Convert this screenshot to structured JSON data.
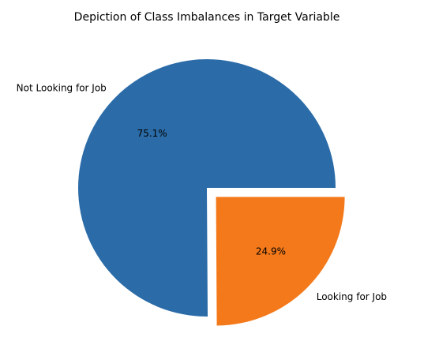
{
  "chart_data": {
    "type": "pie",
    "title": "Depiction of Class Imbalances in Target Variable",
    "slices": [
      {
        "label": "Not Looking for Job",
        "value": 75.1,
        "pct_label": "75.1%",
        "color": "#2b6ca8",
        "exploded": false
      },
      {
        "label": "Looking for Job",
        "value": 24.9,
        "pct_label": "24.9%",
        "color": "#f4791a",
        "exploded": true
      }
    ]
  }
}
